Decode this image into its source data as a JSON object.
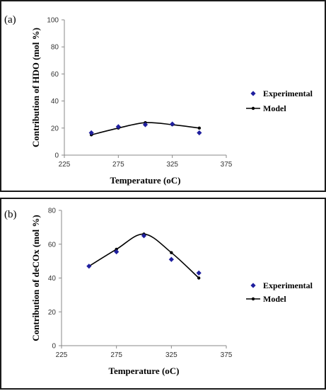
{
  "figure": {
    "panel_a_label": "(a)",
    "panel_b_label": "(b)"
  },
  "colors": {
    "experimental": "#1f1f9e",
    "model": "#000000",
    "axis": "#8a8a8a"
  },
  "chart_data": [
    {
      "type": "scatter",
      "title": "",
      "xlabel": "Temperature (oC)",
      "ylabel": "Contribution of HDO (mol %)",
      "xlim": [
        225,
        375
      ],
      "ylim": [
        0,
        100
      ],
      "xticks": [
        "225",
        "275",
        "325",
        "375"
      ],
      "yticks": [
        "0",
        "20",
        "40",
        "60",
        "80",
        "100"
      ],
      "grid": false,
      "legend_position": "right",
      "series": [
        {
          "name": "Experimental",
          "marker": "diamond",
          "x": [
            250,
            275,
            300,
            325,
            350
          ],
          "y": [
            16.5,
            21,
            22.5,
            23,
            16.5
          ]
        },
        {
          "name": "Model",
          "marker": "circle-line",
          "x": [
            250,
            275,
            300,
            325,
            350
          ],
          "y": [
            15,
            20,
            24,
            22.5,
            20
          ]
        }
      ]
    },
    {
      "type": "scatter",
      "title": "",
      "xlabel": "Temperature (oC)",
      "ylabel": "Contribution of deCOx (mol %)",
      "xlim": [
        225,
        375
      ],
      "ylim": [
        0,
        80
      ],
      "xticks": [
        "225",
        "275",
        "325",
        "375"
      ],
      "yticks": [
        "0",
        "20",
        "40",
        "60",
        "80"
      ],
      "grid": false,
      "legend_position": "right",
      "series": [
        {
          "name": "Experimental",
          "marker": "diamond",
          "x": [
            250,
            275,
            300,
            325,
            350
          ],
          "y": [
            47,
            55.5,
            65,
            51,
            43
          ]
        },
        {
          "name": "Model",
          "marker": "circle-line",
          "x": [
            250,
            275,
            300,
            325,
            350
          ],
          "y": [
            47,
            57,
            66,
            55,
            40
          ]
        }
      ]
    }
  ]
}
